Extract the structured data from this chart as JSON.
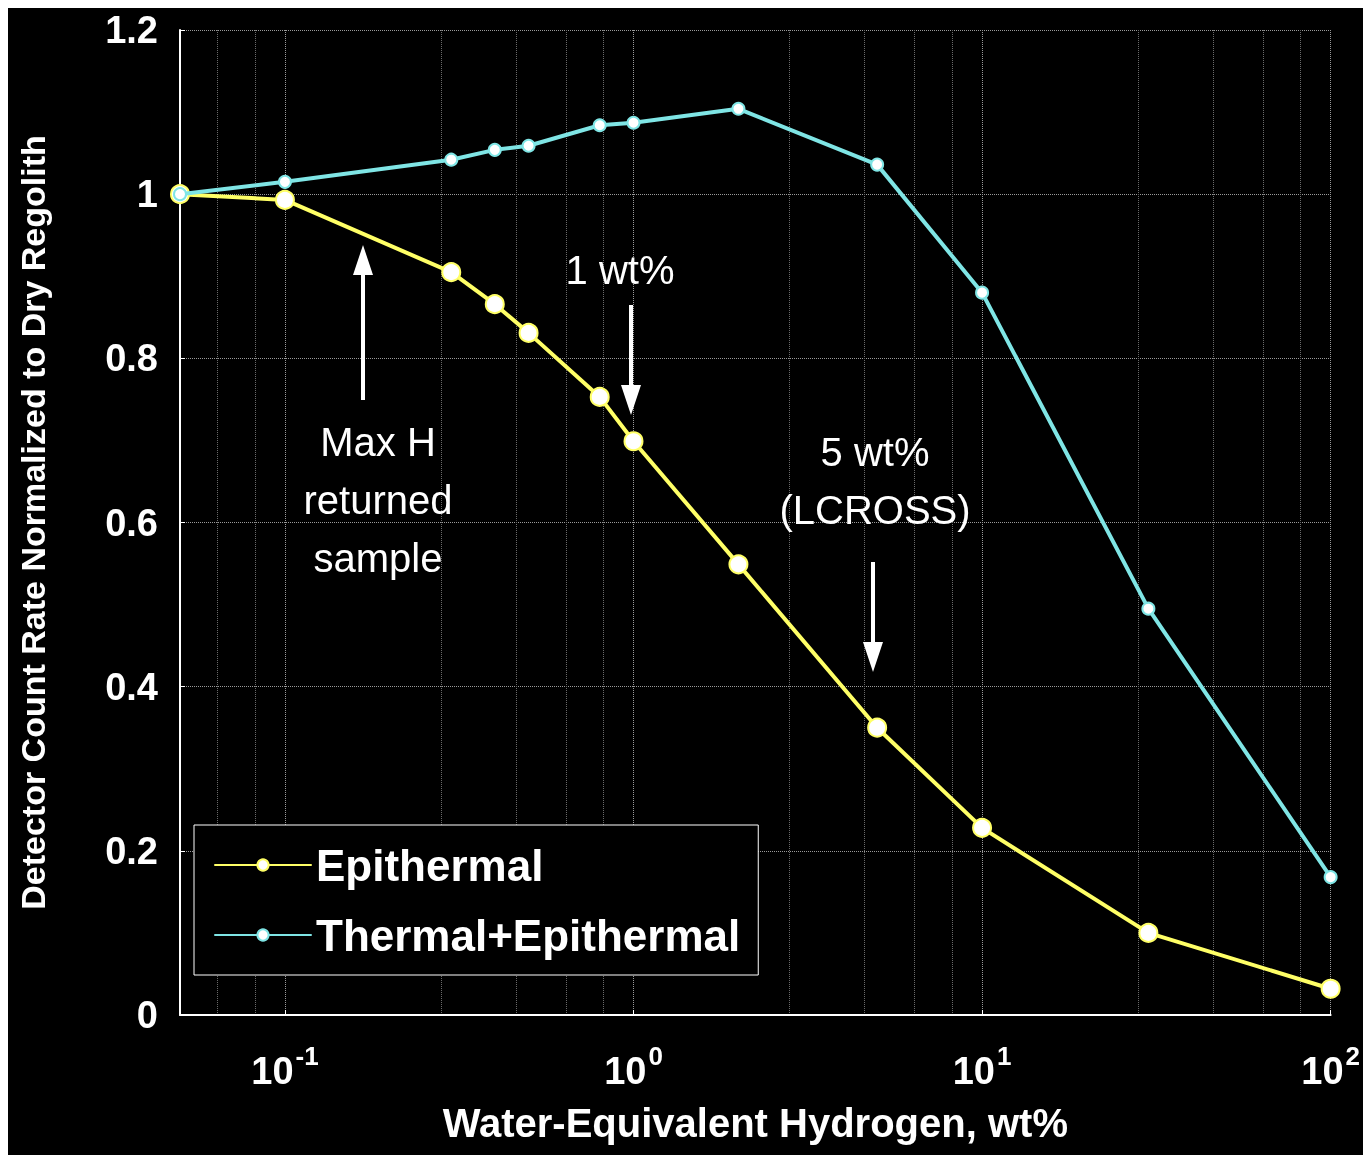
{
  "chart_data": {
    "type": "line",
    "xlabel": "Water-Equivalent Hydrogen, wt%",
    "ylabel": "Detector Count Rate Normalized to Dry Regolith",
    "x": [
      0.05,
      0.1,
      0.3,
      0.4,
      0.5,
      0.8,
      1,
      2,
      5,
      10,
      30,
      100
    ],
    "series": [
      {
        "name": "Epithermal",
        "color": "#ffff66",
        "values": [
          1.0,
          0.993,
          0.905,
          0.866,
          0.831,
          0.753,
          0.699,
          0.549,
          0.35,
          0.228,
          0.1,
          0.032
        ]
      },
      {
        "name": "Thermal+Epithermal",
        "color": "#7fe5e5",
        "values": [
          1.0,
          1.015,
          1.042,
          1.054,
          1.059,
          1.084,
          1.087,
          1.104,
          1.036,
          0.88,
          0.495,
          0.168
        ]
      }
    ],
    "log": "x",
    "xlim": [
      0.05,
      100
    ],
    "xticks": [
      {
        "value": 0.1,
        "label": "10$^{-1}$"
      },
      {
        "value": 1,
        "label": "10$^{0}$"
      },
      {
        "value": 10,
        "label": "10$^{1}$"
      },
      {
        "value": 100,
        "label": "10$^{2}$"
      }
    ],
    "ylim": [
      0,
      1.2
    ],
    "yticks": [
      0,
      0.2,
      0.4,
      0.6,
      0.8,
      1,
      1.2
    ],
    "grid": true,
    "legend": "bottom left",
    "marker": "circle",
    "line_style": "solid",
    "annotations": [
      "Max H\nreturned\nsample",
      "1 wt%",
      "5 wt%\n(LCROSS)"
    ]
  }
}
